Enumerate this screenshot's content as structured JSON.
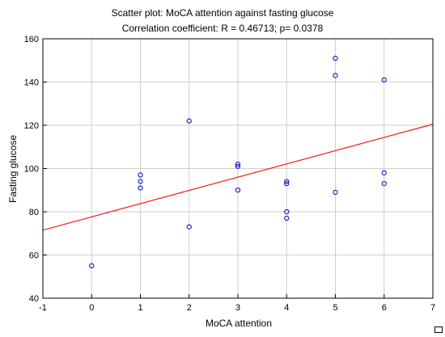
{
  "chart_data": {
    "type": "scatter",
    "title": "Scatter plot: MoCA attention against fasting glucose",
    "subtitle": "Correlation coefficient: R =  0.46713; p= 0.0378",
    "xlabel": "MoCA attention",
    "ylabel": "Fasting glucose",
    "xlim": [
      -1,
      7
    ],
    "ylim": [
      40,
      160
    ],
    "xticks": [
      -1,
      0,
      1,
      2,
      3,
      4,
      5,
      6,
      7
    ],
    "yticks": [
      40,
      60,
      80,
      100,
      120,
      140,
      160
    ],
    "grid": true,
    "points": [
      {
        "x": 0,
        "y": 55
      },
      {
        "x": 1,
        "y": 97
      },
      {
        "x": 1,
        "y": 94
      },
      {
        "x": 1,
        "y": 91
      },
      {
        "x": 2,
        "y": 122
      },
      {
        "x": 2,
        "y": 73
      },
      {
        "x": 3,
        "y": 102
      },
      {
        "x": 3,
        "y": 101
      },
      {
        "x": 3,
        "y": 90
      },
      {
        "x": 4,
        "y": 94
      },
      {
        "x": 4,
        "y": 93
      },
      {
        "x": 4,
        "y": 80
      },
      {
        "x": 4,
        "y": 77
      },
      {
        "x": 5,
        "y": 151
      },
      {
        "x": 5,
        "y": 143
      },
      {
        "x": 5,
        "y": 89
      },
      {
        "x": 6,
        "y": 141
      },
      {
        "x": 6,
        "y": 98
      },
      {
        "x": 6,
        "y": 93
      }
    ],
    "fit_line": {
      "x": [
        -1,
        7
      ],
      "y": [
        71.5,
        120.5
      ]
    },
    "colors": {
      "points": "#0000cc",
      "fit_line": "#ff0000",
      "grid": "#cfcfcf",
      "axes": "#000000"
    }
  }
}
